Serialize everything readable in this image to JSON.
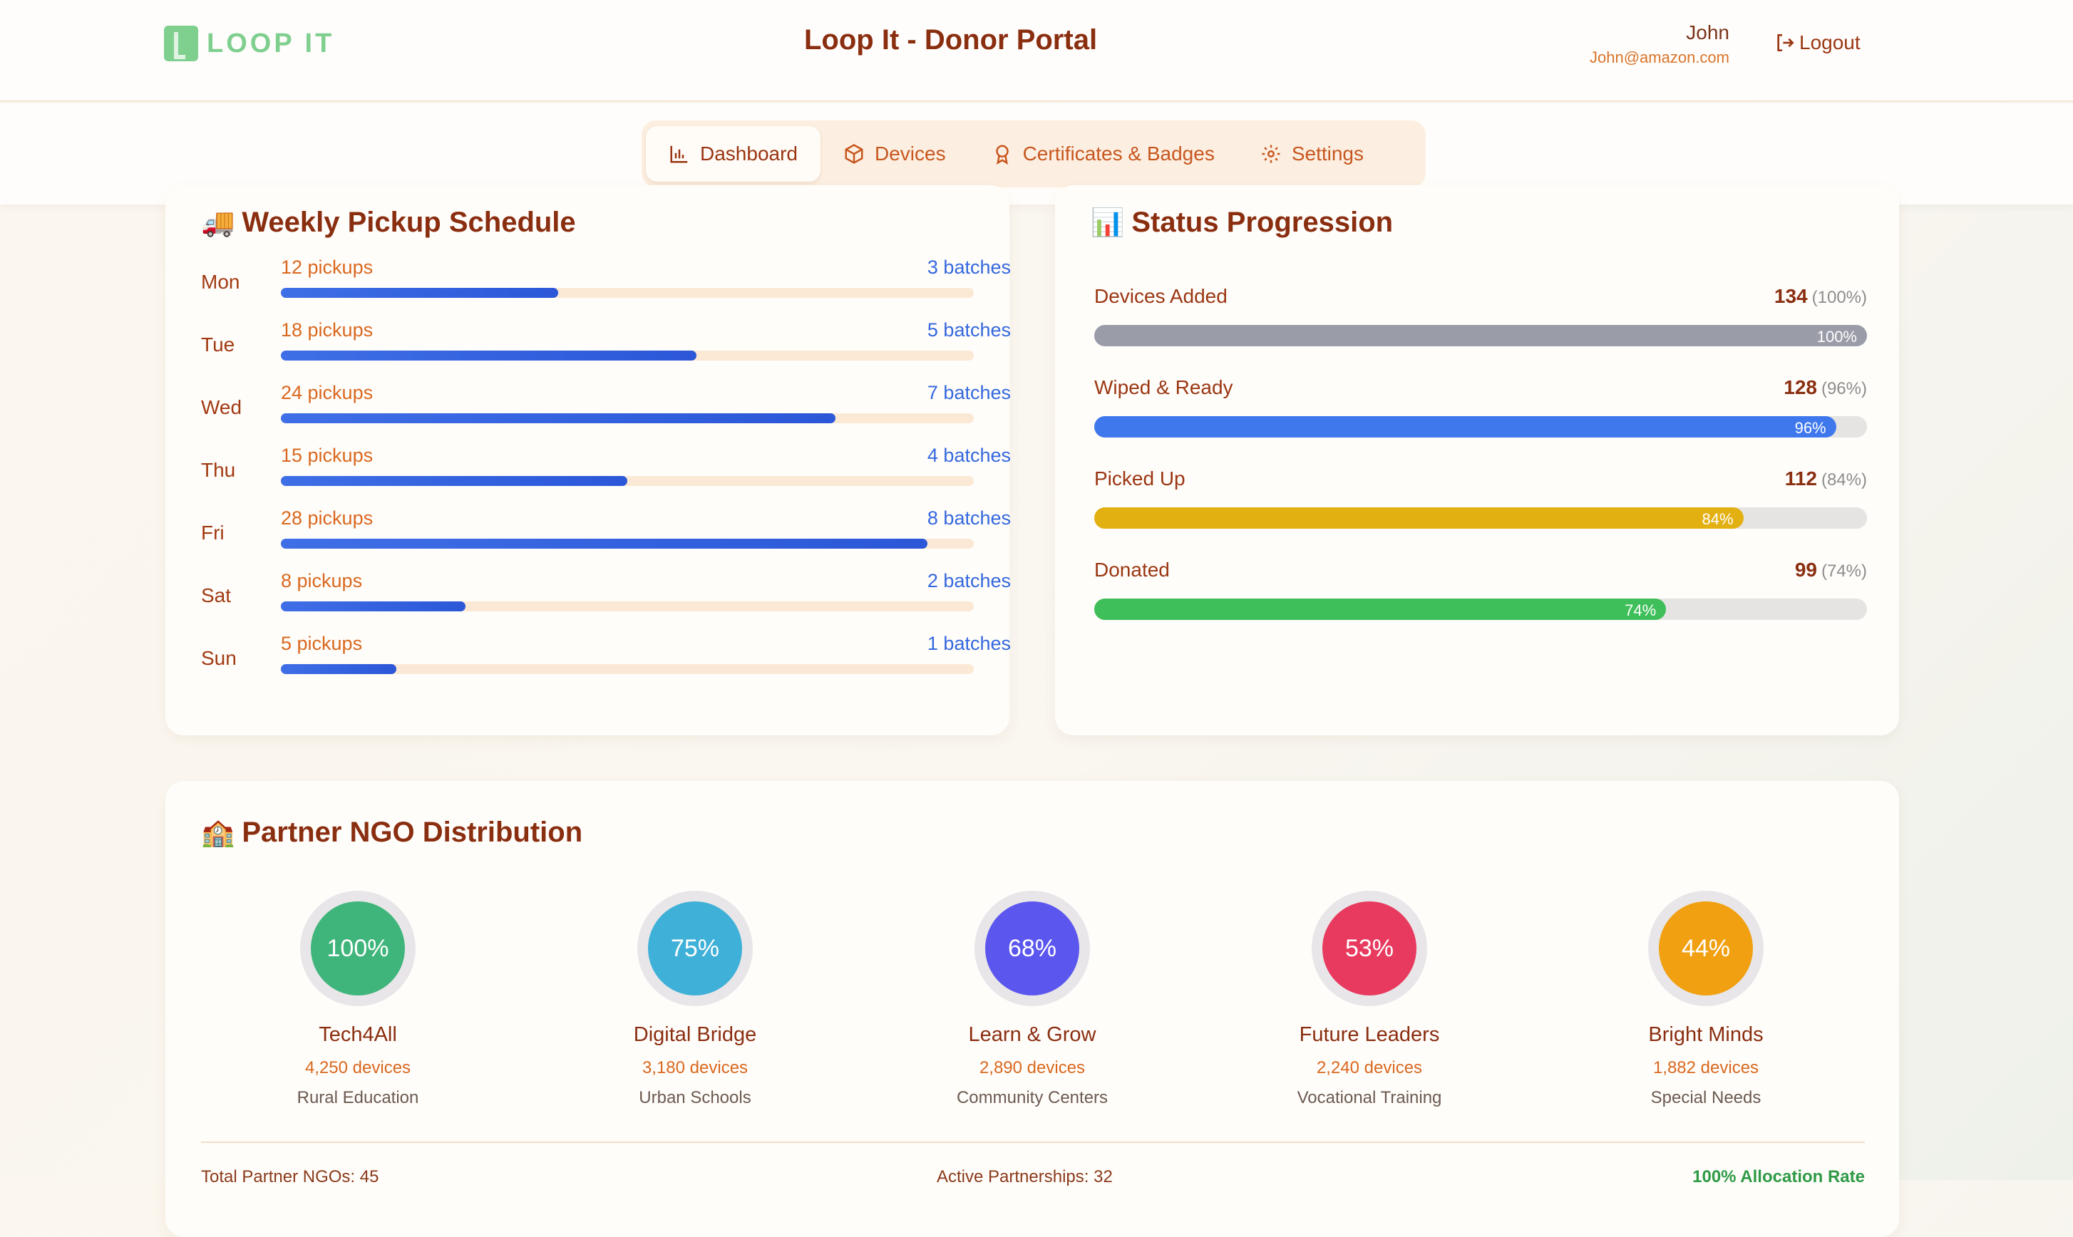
{
  "header": {
    "logo_text": "LOOP IT",
    "title": "Loop It - Donor Portal",
    "user_name": "John",
    "user_email": "John@amazon.com",
    "logout_label": "Logout"
  },
  "nav": {
    "tabs": [
      {
        "label": "Dashboard",
        "icon": "bar-chart-icon",
        "active": true
      },
      {
        "label": "Devices",
        "icon": "box-icon",
        "active": false
      },
      {
        "label": "Certificates & Badges",
        "icon": "award-icon",
        "active": false
      },
      {
        "label": "Settings",
        "icon": "gear-icon",
        "active": false
      }
    ]
  },
  "schedule": {
    "title": "Weekly Pickup Schedule",
    "emoji": "🚚",
    "days": [
      {
        "day": "Mon",
        "pickups": "12 pickups",
        "batches": "3 batches",
        "value": 12
      },
      {
        "day": "Tue",
        "pickups": "18 pickups",
        "batches": "5 batches",
        "value": 18
      },
      {
        "day": "Wed",
        "pickups": "24 pickups",
        "batches": "7 batches",
        "value": 24
      },
      {
        "day": "Thu",
        "pickups": "15 pickups",
        "batches": "4 batches",
        "value": 15
      },
      {
        "day": "Fri",
        "pickups": "28 pickups",
        "batches": "8 batches",
        "value": 28
      },
      {
        "day": "Sat",
        "pickups": "8 pickups",
        "batches": "2 batches",
        "value": 8
      },
      {
        "day": "Sun",
        "pickups": "5 pickups",
        "batches": "1 batches",
        "value": 5
      }
    ],
    "max_value": 30
  },
  "status": {
    "title": "Status Progression",
    "emoji": "📊",
    "items": [
      {
        "label": "Devices Added",
        "count": "134",
        "pct_text": "(100%)",
        "bar_label": "100%",
        "percent": 100,
        "color": "#9a9ca8"
      },
      {
        "label": "Wiped & Ready",
        "count": "128",
        "pct_text": "(96%)",
        "bar_label": "96%",
        "percent": 96,
        "color": "#3f78ec"
      },
      {
        "label": "Picked Up",
        "count": "112",
        "pct_text": "(84%)",
        "bar_label": "84%",
        "percent": 84,
        "color": "#e3b012"
      },
      {
        "label": "Donated",
        "count": "99",
        "pct_text": "(74%)",
        "bar_label": "74%",
        "percent": 74,
        "color": "#3fbf5a"
      }
    ]
  },
  "ngo": {
    "title": "Partner NGO Distribution",
    "emoji": "🏫",
    "partners": [
      {
        "percent": "100%",
        "name": "Tech4All",
        "devices": "4,250 devices",
        "area": "Rural Education",
        "color": "#3fb57c"
      },
      {
        "percent": "75%",
        "name": "Digital Bridge",
        "devices": "3,180 devices",
        "area": "Urban Schools",
        "color": "#3fb0d8"
      },
      {
        "percent": "68%",
        "name": "Learn & Grow",
        "devices": "2,890 devices",
        "area": "Community Centers",
        "color": "#5b56ee"
      },
      {
        "percent": "53%",
        "name": "Future Leaders",
        "devices": "2,240 devices",
        "area": "Vocational Training",
        "color": "#e83a5e"
      },
      {
        "percent": "44%",
        "name": "Bright Minds",
        "devices": "1,882 devices",
        "area": "Special Needs",
        "color": "#f0a010"
      }
    ],
    "footer": {
      "total": "Total Partner NGOs: 45",
      "active": "Active Partnerships: 32",
      "rate": "100% Allocation Rate"
    }
  }
}
